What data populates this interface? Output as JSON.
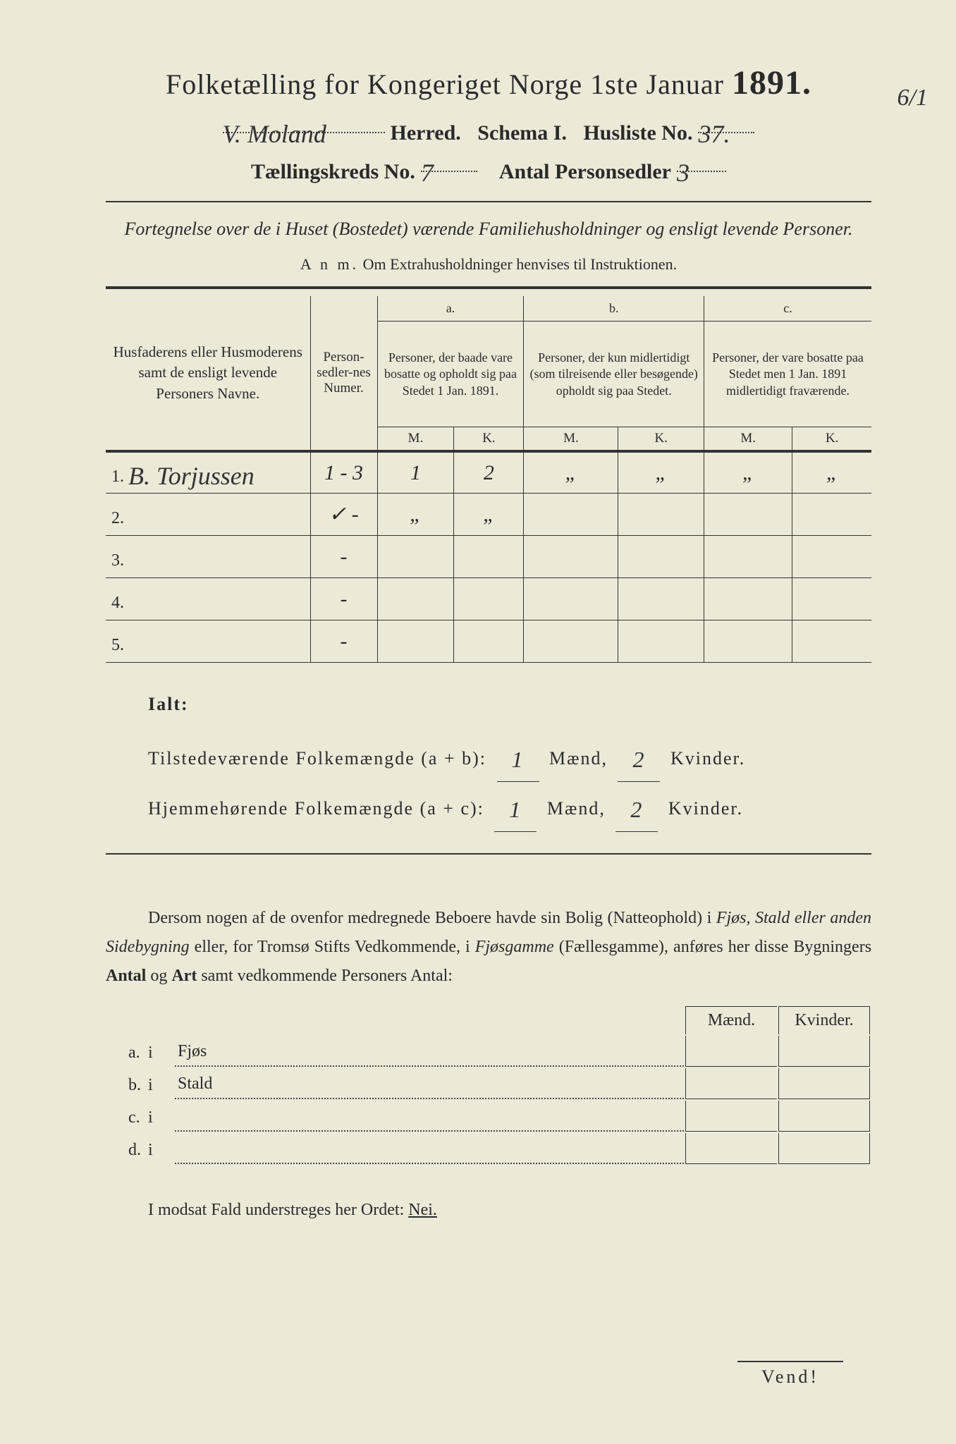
{
  "title": {
    "main": "Folketælling for Kongeriget Norge 1ste Januar",
    "year": "1891."
  },
  "header": {
    "herred_value": "V. Moland",
    "herred_label": "Herred.",
    "schema_label": "Schema I.",
    "husliste_label": "Husliste No.",
    "husliste_value": "37.",
    "kreds_label": "Tællingskreds No.",
    "kreds_value": "7",
    "antal_label": "Antal Personsedler",
    "antal_value": "3"
  },
  "margin_note": "6/1",
  "subtitle": "Fortegnelse over de i Huset (Bostedet) værende Familiehusholdninger og ensligt levende Personer.",
  "anm": {
    "label": "A n m.",
    "text": "Om Extrahusholdninger henvises til Instruktionen."
  },
  "columns": {
    "name": "Husfaderens eller Husmoderens samt de ensligt levende Personers Navne.",
    "num": "Person-sedler-nes Numer.",
    "a_label": "a.",
    "a_text": "Personer, der baade vare bosatte og opholdt sig paa Stedet 1 Jan. 1891.",
    "b_label": "b.",
    "b_text": "Personer, der kun midlertidigt (som tilreisende eller besøgende) opholdt sig paa Stedet.",
    "c_label": "c.",
    "c_text": "Personer, der vare bosatte paa Stedet men 1 Jan. 1891 midlertidigt fraværende.",
    "m": "M.",
    "k": "K."
  },
  "rows": [
    {
      "num": "1.",
      "name": "B. Torjussen",
      "sedler": "1 - 3",
      "am": "1",
      "ak": "2",
      "bm": "„",
      "bk": "„",
      "cm": "„",
      "ck": "„"
    },
    {
      "num": "2.",
      "name": "",
      "sedler": "✓  -",
      "am": "„",
      "ak": "„",
      "bm": "",
      "bk": "",
      "cm": "",
      "ck": ""
    },
    {
      "num": "3.",
      "name": "",
      "sedler": "-",
      "am": "",
      "ak": "",
      "bm": "",
      "bk": "",
      "cm": "",
      "ck": ""
    },
    {
      "num": "4.",
      "name": "",
      "sedler": "-",
      "am": "",
      "ak": "",
      "bm": "",
      "bk": "",
      "cm": "",
      "ck": ""
    },
    {
      "num": "5.",
      "name": "",
      "sedler": "-",
      "am": "",
      "ak": "",
      "bm": "",
      "bk": "",
      "cm": "",
      "ck": ""
    }
  ],
  "ialt": {
    "label": "Ialt:",
    "line1_pre": "Tilstedeværende Folkemængde (a + b):",
    "line1_m": "1",
    "line1_k": "2",
    "line2_pre": "Hjemmehørende Folkemængde (a + c):",
    "line2_m": "1",
    "line2_k": "2",
    "maend": "Mænd,",
    "kvinder": "Kvinder."
  },
  "paragraph": {
    "text1": "Dersom nogen af de ovenfor medregnede Beboere havde sin Bolig (Natteophold) i ",
    "em1": "Fjøs, Stald eller anden Sidebygning",
    "text2": " eller, for Tromsø Stifts Vedkommende, i ",
    "em2": "Fjøsgamme",
    "text3": " (Fællesgamme), anføres her disse Bygningers ",
    "bold1": "Antal",
    "text4": " og ",
    "bold2": "Art",
    "text5": " samt vedkommende Personers Antal:"
  },
  "side_table": {
    "maend": "Mænd.",
    "kvinder": "Kvinder.",
    "rows": [
      {
        "letter": "a.",
        "i": "i",
        "label": "Fjøs"
      },
      {
        "letter": "b.",
        "i": "i",
        "label": "Stald"
      },
      {
        "letter": "c.",
        "i": "i",
        "label": ""
      },
      {
        "letter": "d.",
        "i": "i",
        "label": ""
      }
    ]
  },
  "nei_line": {
    "text": "I modsat Fald understreges her Ordet: ",
    "nei": "Nei."
  },
  "vend": "Vend!"
}
